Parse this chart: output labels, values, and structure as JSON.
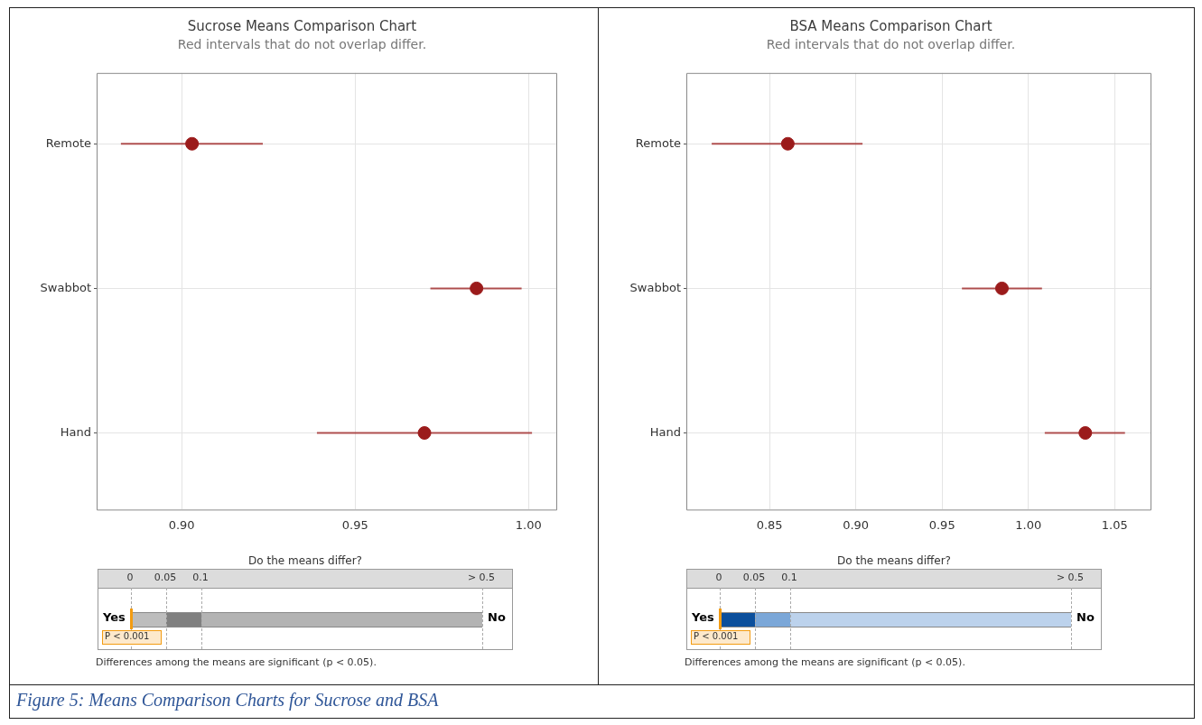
{
  "chart_data": [
    {
      "type": "scatter",
      "title": "Sucrose Means Comparison Chart",
      "subtitle": "Red intervals that do not overlap differ.",
      "orientation": "horizontal",
      "categories": [
        "Remote",
        "Swabbot",
        "Hand"
      ],
      "values": [
        0.903,
        0.985,
        0.97
      ],
      "errors": [
        [
          0.8825,
          0.9234
        ],
        [
          0.9717,
          0.998
        ],
        [
          0.939,
          1.001
        ]
      ],
      "color": "#9b1b1b",
      "marker": "circle",
      "xlim": [
        0.8755,
        1.008
      ],
      "xticks": [
        {
          "value": 0.9,
          "label": "0.90"
        },
        {
          "value": 0.95,
          "label": "0.95"
        },
        {
          "value": 1.0,
          "label": "1.00"
        }
      ],
      "grid": true,
      "annotations": [
        "Do the means differ?",
        "0",
        "0.05",
        "0.1",
        "> 0.5",
        "Yes",
        "No",
        "P < 0.001",
        "Differences among the means are significant (p < 0.05).",
        "Figure 5: Means Comparison Charts for Sucrose and BSA"
      ]
    },
    {
      "type": "scatter",
      "title": "BSA Means Comparison Chart",
      "subtitle": "Red intervals that do not overlap differ.",
      "orientation": "horizontal",
      "categories": [
        "Remote",
        "Swabbot",
        "Hand"
      ],
      "values": [
        0.8606,
        0.9847,
        1.033
      ],
      "errors": [
        [
          0.8165,
          0.9039
        ],
        [
          0.9615,
          1.0079
        ],
        [
          1.0095,
          1.056
        ]
      ],
      "color": "#9b1b1b",
      "marker": "circle",
      "xlim": [
        0.8018,
        1.0708
      ],
      "xticks": [
        {
          "value": 0.85,
          "label": "0.85"
        },
        {
          "value": 0.9,
          "label": "0.90"
        },
        {
          "value": 0.95,
          "label": "0.95"
        },
        {
          "value": 1.0,
          "label": "1.00"
        },
        {
          "value": 1.05,
          "label": "1.05"
        }
      ],
      "grid": true,
      "annotations": [
        "Do the means differ?",
        "0",
        "0.05",
        "0.1",
        "> 0.5",
        "Yes",
        "No",
        "P < 0.001",
        "Differences among the means are significant (p < 0.05)."
      ]
    }
  ]
}
